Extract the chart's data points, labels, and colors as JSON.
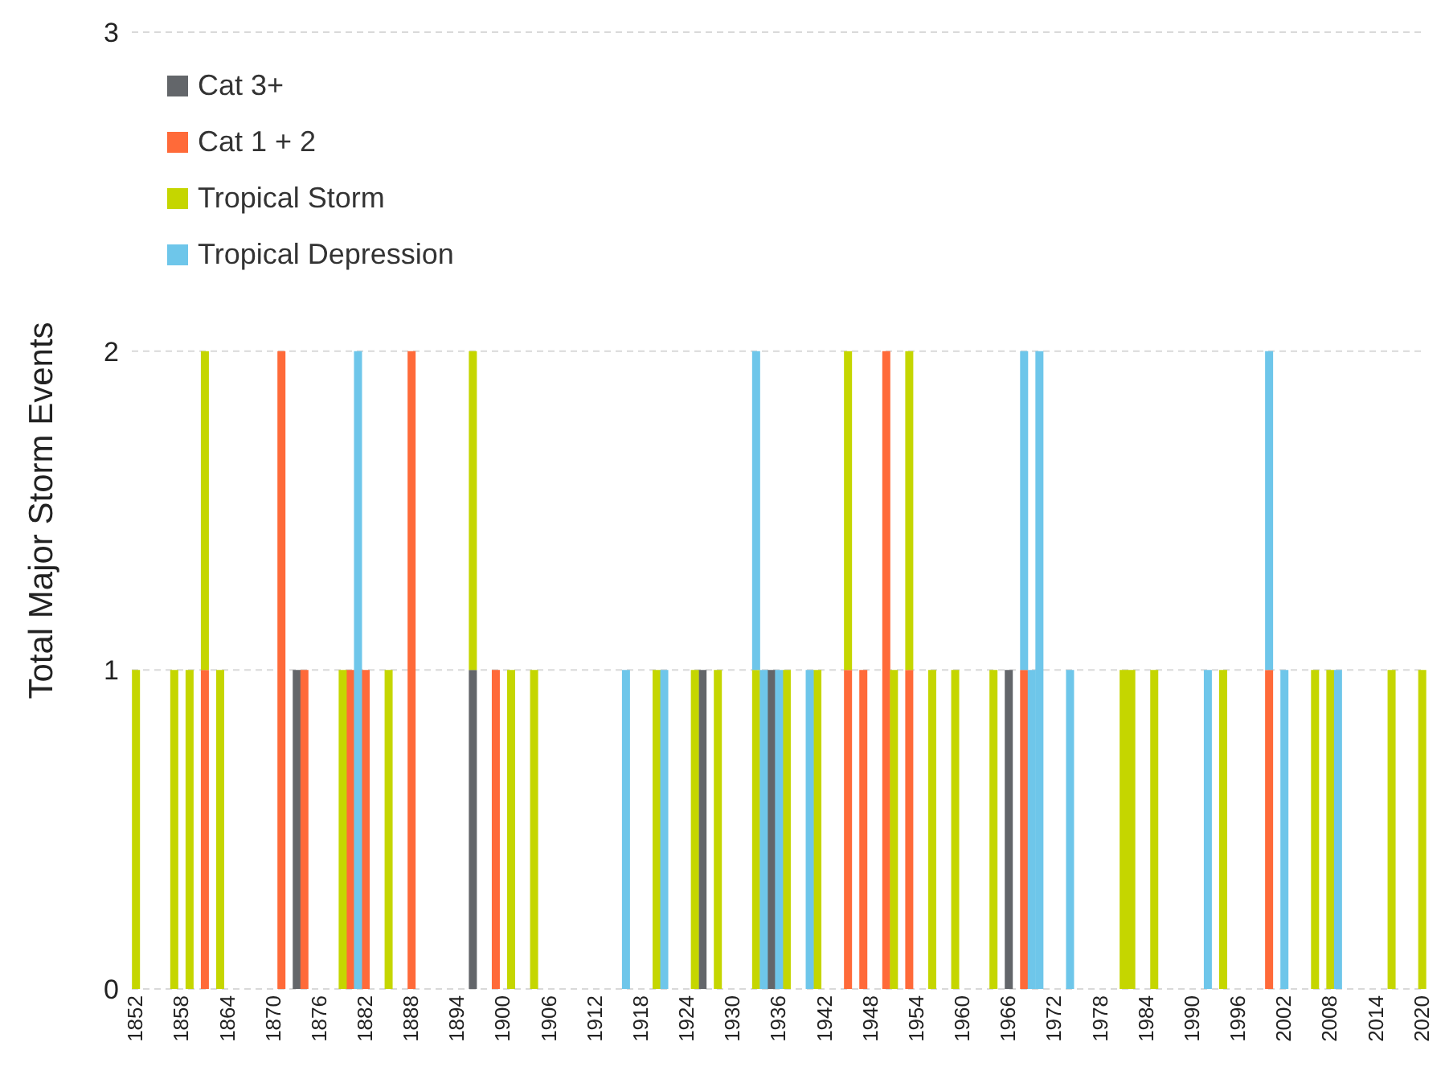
{
  "chart_data": {
    "type": "bar",
    "stacked": true,
    "ylabel": "Total Major Storm Events",
    "ylim": [
      0,
      3
    ],
    "yticks": [
      0,
      1,
      2,
      3
    ],
    "grid": "y",
    "legend": "top left",
    "categories": [
      "1852",
      null,
      null,
      null,
      null,
      null,
      "1858",
      null,
      null,
      null,
      null,
      null,
      "1864",
      null,
      null,
      null,
      null,
      null,
      "1870",
      null,
      null,
      null,
      null,
      null,
      "1876",
      null,
      null,
      null,
      null,
      null,
      "1882",
      null,
      null,
      null,
      null,
      null,
      "1888",
      null,
      null,
      null,
      null,
      null,
      "1894",
      null,
      null,
      null,
      null,
      null,
      "1900",
      null,
      null,
      null,
      null,
      null,
      "1906",
      null,
      null,
      null,
      null,
      null,
      "1912",
      null,
      null,
      null,
      null,
      null,
      "1918",
      null,
      null,
      null,
      null,
      null,
      "1924",
      null,
      null,
      null,
      null,
      null,
      "1930",
      null,
      null,
      null,
      null,
      null,
      "1936",
      null,
      null,
      null,
      null,
      null,
      "1942",
      null,
      null,
      null,
      null,
      null,
      "1948",
      null,
      null,
      null,
      null,
      null,
      "1954",
      null,
      null,
      null,
      null,
      null,
      "1960",
      null,
      null,
      null,
      null,
      null,
      "1966",
      null,
      null,
      null,
      null,
      null,
      "1972",
      null,
      null,
      null,
      null,
      null,
      "1978",
      null,
      null,
      null,
      null,
      null,
      "1984",
      null,
      null,
      null,
      null,
      null,
      "1990",
      null,
      null,
      null,
      null,
      null,
      "1996",
      null,
      null,
      null,
      null,
      null,
      "2002",
      null,
      null,
      null,
      null,
      null,
      "2008",
      null,
      null,
      null,
      null,
      null,
      "2014",
      null,
      null,
      null,
      null,
      null,
      "2020"
    ],
    "series": [
      {
        "name": "Cat 3+",
        "color": "#63666a",
        "values": [
          0,
          0,
          0,
          0,
          0,
          0,
          0,
          0,
          0,
          0,
          0,
          0,
          0,
          0,
          0,
          0,
          0,
          0,
          0,
          0,
          0,
          1,
          0,
          0,
          0,
          0,
          0,
          0,
          0,
          0,
          0,
          0,
          0,
          0,
          0,
          0,
          0,
          0,
          0,
          0,
          0,
          0,
          0,
          0,
          1,
          0,
          0,
          0,
          0,
          0,
          0,
          0,
          0,
          0,
          0,
          0,
          0,
          0,
          0,
          0,
          0,
          0,
          0,
          0,
          0,
          0,
          0,
          0,
          0,
          0,
          0,
          0,
          0,
          0,
          1,
          0,
          0,
          0,
          0,
          0,
          0,
          0,
          0,
          1,
          0,
          0,
          0,
          0,
          0,
          0,
          0,
          0,
          0,
          0,
          0,
          0,
          0,
          0,
          0,
          0,
          0,
          0,
          0,
          0,
          0,
          0,
          0,
          0,
          0,
          0,
          0,
          0,
          0,
          0,
          1,
          0,
          0,
          0,
          0,
          0,
          0,
          0,
          0,
          0,
          0,
          0,
          0,
          0,
          0,
          0,
          0,
          0,
          0,
          0,
          0,
          0,
          0,
          0,
          0,
          0,
          0,
          0,
          0,
          0,
          0,
          0,
          0,
          0,
          0,
          0,
          0,
          0,
          0,
          0,
          0,
          0,
          0,
          0,
          0,
          0,
          0,
          0,
          0,
          0,
          0,
          0,
          0,
          0,
          0
        ]
      },
      {
        "name": "Cat 1 + 2",
        "color": "#ff6a39",
        "values": [
          0,
          0,
          0,
          0,
          0,
          0,
          0,
          0,
          0,
          1,
          0,
          0,
          0,
          0,
          0,
          0,
          0,
          0,
          0,
          2,
          0,
          0,
          1,
          0,
          0,
          0,
          0,
          0,
          1,
          0,
          1,
          0,
          0,
          0,
          0,
          0,
          2,
          0,
          0,
          0,
          0,
          0,
          0,
          0,
          0,
          0,
          0,
          1,
          0,
          0,
          0,
          0,
          0,
          0,
          0,
          0,
          0,
          0,
          0,
          0,
          0,
          0,
          0,
          0,
          0,
          0,
          0,
          0,
          0,
          0,
          0,
          0,
          0,
          0,
          0,
          0,
          0,
          0,
          0,
          0,
          0,
          0,
          0,
          0,
          0,
          0,
          0,
          0,
          0,
          0,
          0,
          0,
          0,
          1,
          0,
          1,
          0,
          0,
          2,
          0,
          0,
          1,
          0,
          0,
          0,
          0,
          0,
          0,
          0,
          0,
          0,
          0,
          0,
          0,
          0,
          0,
          1,
          0,
          0,
          0,
          0,
          0,
          0,
          0,
          0,
          0,
          0,
          0,
          0,
          0,
          0,
          0,
          0,
          0,
          0,
          0,
          0,
          0,
          0,
          0,
          0,
          0,
          0,
          0,
          0,
          0,
          0,
          0,
          1,
          0,
          0,
          0,
          0,
          0,
          0,
          0,
          0,
          0,
          0,
          0,
          0,
          0,
          0,
          0,
          0,
          0,
          0,
          0,
          0
        ]
      },
      {
        "name": "Tropical Storm",
        "color": "#c5d600",
        "values": [
          1,
          0,
          0,
          0,
          0,
          1,
          0,
          1,
          0,
          1,
          0,
          1,
          0,
          0,
          0,
          0,
          0,
          0,
          0,
          0,
          0,
          0,
          0,
          0,
          0,
          0,
          0,
          1,
          0,
          0,
          0,
          0,
          0,
          1,
          0,
          0,
          0,
          0,
          0,
          0,
          0,
          0,
          0,
          0,
          1,
          0,
          0,
          0,
          0,
          1,
          0,
          0,
          1,
          0,
          0,
          0,
          0,
          0,
          0,
          0,
          0,
          0,
          0,
          0,
          0,
          0,
          0,
          0,
          1,
          0,
          0,
          0,
          0,
          1,
          0,
          0,
          1,
          0,
          0,
          0,
          0,
          1,
          0,
          0,
          0,
          1,
          0,
          0,
          0,
          1,
          0,
          0,
          0,
          1,
          0,
          0,
          0,
          0,
          0,
          1,
          0,
          1,
          0,
          0,
          1,
          0,
          0,
          1,
          0,
          0,
          0,
          0,
          1,
          0,
          0,
          0,
          0,
          0,
          0,
          0,
          0,
          0,
          0,
          0,
          0,
          0,
          0,
          0,
          0,
          1,
          1,
          0,
          0,
          1,
          0,
          0,
          0,
          0,
          0,
          0,
          0,
          0,
          1,
          0,
          0,
          0,
          0,
          0,
          0,
          0,
          0,
          0,
          0,
          0,
          1,
          0,
          1,
          0,
          0,
          0,
          0,
          0,
          0,
          0,
          1,
          0,
          0,
          0,
          1
        ]
      },
      {
        "name": "Tropical Depression",
        "color": "#6ec6ea",
        "values": [
          0,
          0,
          0,
          0,
          0,
          0,
          0,
          0,
          0,
          0,
          0,
          0,
          0,
          0,
          0,
          0,
          0,
          0,
          0,
          0,
          0,
          0,
          0,
          0,
          0,
          0,
          0,
          0,
          0,
          2,
          0,
          0,
          0,
          0,
          0,
          0,
          0,
          0,
          0,
          0,
          0,
          0,
          0,
          0,
          0,
          0,
          0,
          0,
          0,
          0,
          0,
          0,
          0,
          0,
          0,
          0,
          0,
          0,
          0,
          0,
          0,
          0,
          0,
          0,
          1,
          0,
          0,
          0,
          0,
          1,
          0,
          0,
          0,
          0,
          0,
          0,
          0,
          0,
          0,
          0,
          0,
          1,
          1,
          0,
          1,
          0,
          0,
          0,
          1,
          0,
          0,
          0,
          0,
          0,
          0,
          0,
          0,
          0,
          0,
          0,
          0,
          0,
          0,
          0,
          0,
          0,
          0,
          0,
          0,
          0,
          0,
          0,
          0,
          0,
          0,
          0,
          1,
          1,
          2,
          0,
          0,
          0,
          1,
          0,
          0,
          0,
          0,
          0,
          0,
          0,
          0,
          0,
          0,
          0,
          0,
          0,
          0,
          0,
          0,
          0,
          1,
          0,
          0,
          0,
          0,
          0,
          0,
          0,
          1,
          0,
          1,
          0,
          0,
          0,
          0,
          0,
          0,
          1,
          0,
          0,
          0,
          0,
          0,
          0,
          0,
          0,
          0,
          0,
          0
        ]
      }
    ]
  }
}
